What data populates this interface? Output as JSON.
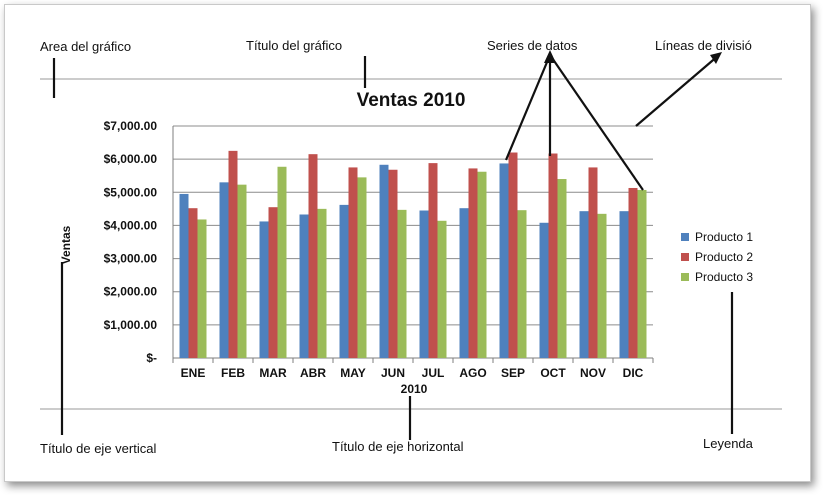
{
  "annotations": {
    "area": "Area del gráfico",
    "chart_title": "Título del gráfico",
    "series": "Series de datos",
    "gridlines": "Líneas de divisió",
    "vertical_axis_title": "Título de eje vertical",
    "horizontal_axis_title": "Título de eje horizontal",
    "legend": "Leyenda"
  },
  "chart_data": {
    "type": "bar",
    "title": "Ventas 2010",
    "xlabel": "2010",
    "ylabel": "Ventas",
    "categories": [
      "ENE",
      "FEB",
      "MAR",
      "ABR",
      "MAY",
      "JUN",
      "JUL",
      "AGO",
      "SEP",
      "OCT",
      "NOV",
      "DIC"
    ],
    "ylim": [
      0,
      7000
    ],
    "yticks": [
      0,
      1000,
      2000,
      3000,
      4000,
      5000,
      6000,
      7000
    ],
    "ytick_labels": [
      "$-",
      "$1,000.00",
      "$2,000.00",
      "$3,000.00",
      "$4,000.00",
      "$5,000.00",
      "$6,000.00",
      "$7,000.00"
    ],
    "grid": true,
    "legend_position": "right",
    "series": [
      {
        "name": "Producto 1",
        "color": "#4F81BD",
        "values": [
          4950,
          5300,
          4120,
          4330,
          4620,
          5830,
          4450,
          4520,
          5870,
          4080,
          4430,
          4430
        ]
      },
      {
        "name": "Producto 2",
        "color": "#C0504D",
        "values": [
          4520,
          6250,
          4550,
          6150,
          5750,
          5680,
          5880,
          5720,
          6200,
          6170,
          5750,
          5130
        ]
      },
      {
        "name": "Producto 3",
        "color": "#9BBB59",
        "values": [
          4180,
          5230,
          5770,
          4500,
          5450,
          4470,
          4140,
          5620,
          4460,
          5400,
          4350,
          5070
        ]
      }
    ]
  }
}
